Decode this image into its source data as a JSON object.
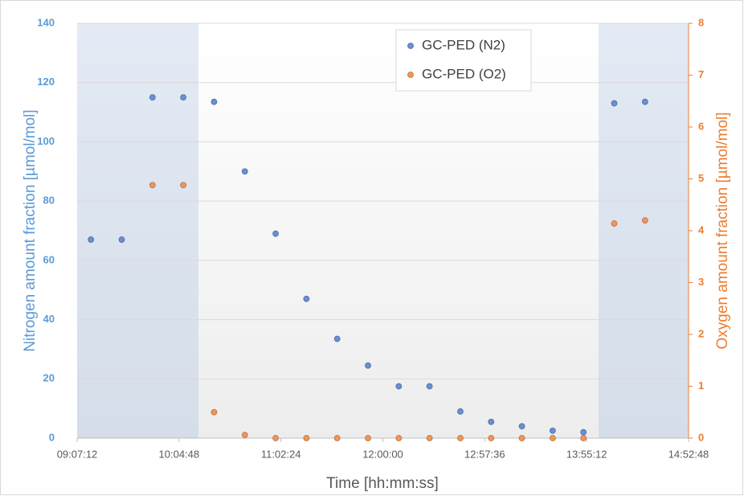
{
  "chart_data": {
    "type": "scatter",
    "x_label": "Time [hh:mm:ss]",
    "y_label": "Nitrogen amount fraction [µmol/mol]",
    "y2_label": "Oxygen amount fraction [µmol/mol]",
    "x": [
      33300,
      34344,
      35388,
      36432,
      37476,
      38520,
      39564,
      40608,
      41652,
      42696,
      43740,
      44784,
      45828,
      46872,
      47916,
      48960,
      50004,
      51048,
      52092
    ],
    "series": [
      {
        "name": "GC-PED (N2)",
        "color": "#6a8fd6",
        "axis": "y",
        "values": [
          67,
          67,
          115,
          115,
          113.5,
          90,
          69,
          47,
          33.5,
          24.5,
          17.5,
          17.5,
          9,
          5.5,
          4,
          2.5,
          2,
          113,
          113.5
        ]
      },
      {
        "name": "GC-PED (O2)",
        "color": "#f0955a",
        "axis": "y2",
        "values": [
          null,
          null,
          4.88,
          4.88,
          0.5,
          0.06,
          0,
          0,
          0,
          0,
          0,
          0,
          0,
          0,
          0,
          0,
          0,
          4.14,
          4.2
        ]
      }
    ],
    "xlim": [
      32832,
      53568
    ],
    "xticks": [
      {
        "value": 32832,
        "label": "09:07:12"
      },
      {
        "value": 36288,
        "label": "10:04:48"
      },
      {
        "value": 39744,
        "label": "11:02:24"
      },
      {
        "value": 43200,
        "label": "12:00:00"
      },
      {
        "value": 46656,
        "label": "12:57:36"
      },
      {
        "value": 50112,
        "label": "13:55:12"
      },
      {
        "value": 53568,
        "label": "14:52:48"
      }
    ],
    "ylim": [
      0,
      140
    ],
    "yticks": [
      0,
      20,
      40,
      60,
      80,
      100,
      120,
      140
    ],
    "y2lim": [
      0,
      8
    ],
    "y2ticks": [
      0,
      1,
      2,
      3,
      4,
      5,
      6,
      7,
      8
    ],
    "shaded_regions": [
      [
        32832,
        36946
      ],
      [
        50516,
        53568
      ]
    ],
    "grid": true,
    "legend": "top"
  }
}
